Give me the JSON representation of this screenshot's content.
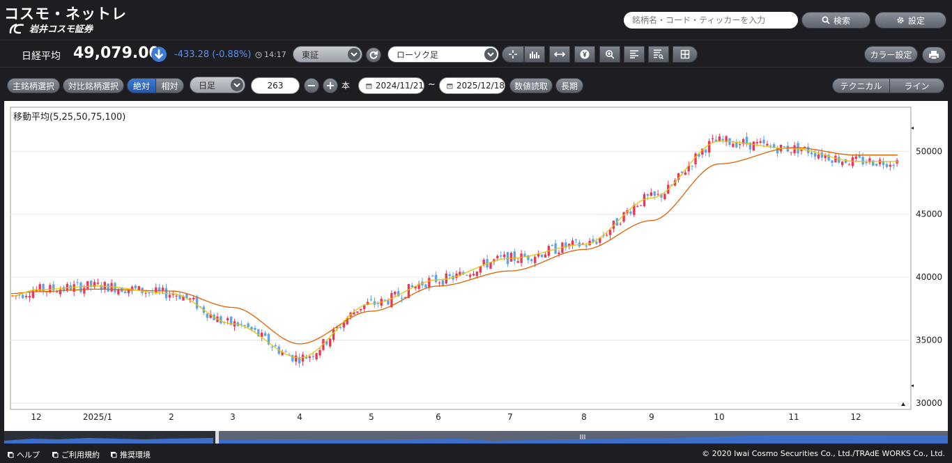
{
  "header": {
    "logo_text": "コスモ・ネットレ",
    "company": "岩井コスモ証券",
    "search_placeholder": "銘柄名・コード・ティッカーを入力",
    "search_btn": "検索",
    "settings_btn": "設定"
  },
  "quote": {
    "name": "日経平均",
    "value": "49,079.00",
    "change": "-433.28 (-0.88%)",
    "time": "14:17",
    "market": "東証",
    "chart_type": "ローソク足",
    "color_btn": "カラー設定"
  },
  "controls": {
    "main_select": "主銘柄選択",
    "compare_select": "対比銘柄選択",
    "absolute": "絶対",
    "relative": "相対",
    "period": "日足",
    "count": "263",
    "unit": "本",
    "date_from": "2024/11/21",
    "tilde": "~",
    "date_to": "2025/12/18",
    "read_values": "数値読取",
    "long_term": "長期",
    "technical": "テクニカル",
    "line": "ライン"
  },
  "chart_data": {
    "type": "line",
    "title": "移動平均(5,25,50,75,100)",
    "x_tick_labels": [
      "12",
      "2025/1",
      "2",
      "3",
      "4",
      "5",
      "6",
      "7",
      "8",
      "9",
      "10",
      "11",
      "12"
    ],
    "y_tick_labels": [
      "50000",
      "45000",
      "40000",
      "35000",
      "30000"
    ],
    "ylim": [
      29500,
      53500
    ],
    "series": [
      {
        "color": "#e06000",
        "monthly": [
          38700,
          38850,
          39050,
          38900,
          37600,
          34700,
          37300,
          39300,
          40500,
          42200,
          44500,
          49000,
          50300,
          49700
        ]
      },
      {
        "color": "#e8c400",
        "monthly": [
          38500,
          39000,
          39300,
          38700,
          36300,
          33600,
          37900,
          39800,
          41500,
          42600,
          46300,
          50800,
          50200,
          49200
        ]
      }
    ],
    "candle_colors": {
      "up": "#e8395a",
      "down": "#5fa3e8"
    }
  },
  "footer": {
    "help": "ヘルプ",
    "terms": "ご利用規約",
    "env": "推奨環境",
    "copyright": "© 2020 Iwai Cosmo Securities Co., Ltd./TRAdE WORKS Co., Ltd."
  }
}
